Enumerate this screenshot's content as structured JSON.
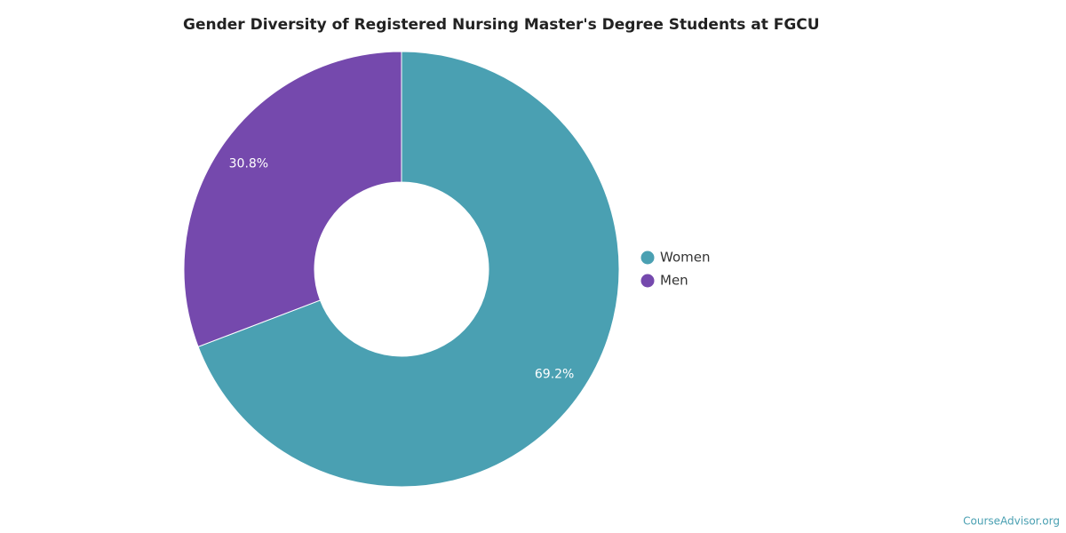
{
  "chart_data": {
    "type": "donut",
    "title": "Gender Diversity of Registered Nursing Master's Degree Students at FGCU",
    "categories": [
      "Women",
      "Men"
    ],
    "values": [
      69.2,
      30.8
    ],
    "value_labels": [
      "69.2%",
      "30.8%"
    ],
    "colors": [
      "#4aa0b2",
      "#7549ad"
    ],
    "legend": "right",
    "watermark": "CourseAdvisor.org"
  }
}
